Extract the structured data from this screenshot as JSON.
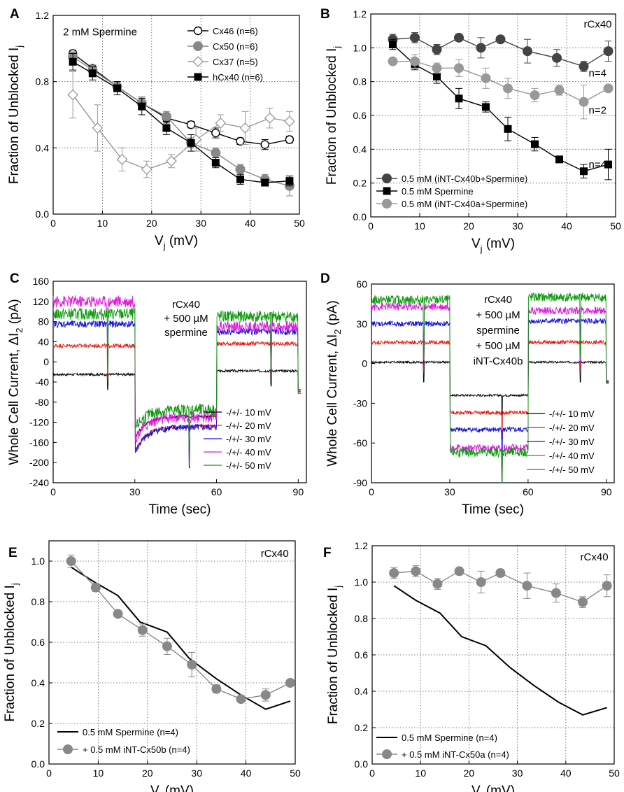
{
  "chart_data": [
    {
      "id": "A",
      "type": "line",
      "panel_label": "A",
      "xlabel": "V",
      "xlabel_sub": "j",
      "xlabel_unit": " (mV)",
      "ylabel": "Fraction of Unblocked I",
      "ylabel_sub": "j",
      "xlim": [
        0,
        50
      ],
      "ylim": [
        0,
        1.2
      ],
      "xticks": [
        0,
        10,
        20,
        30,
        40,
        50
      ],
      "yticks": [
        0.0,
        0.4,
        0.8,
        1.2
      ],
      "ytick_labels": [
        "0.0",
        "0.4",
        "0.8",
        "1.2"
      ],
      "grid_x": [
        10,
        20,
        30,
        40
      ],
      "grid_y": [
        0.4,
        0.8
      ],
      "annotations": [
        {
          "text": "2 mM Spermine",
          "x": 2,
          "y": 1.08
        }
      ],
      "legend_position": "top-right",
      "series": [
        {
          "name": "Cx46 (n=6)",
          "marker": "circle-open",
          "color": "#000000",
          "x": [
            4,
            8,
            13,
            18,
            23,
            28,
            33,
            38,
            43,
            48
          ],
          "y": [
            0.97,
            0.88,
            0.77,
            0.67,
            0.58,
            0.54,
            0.49,
            0.44,
            0.42,
            0.45
          ],
          "err": [
            0.02,
            0.02,
            0.03,
            0.03,
            0.03,
            0.02,
            0.03,
            0.02,
            0.03,
            0.02
          ]
        },
        {
          "name": "Cx50 (n=6)",
          "marker": "circle",
          "color": "#888888",
          "x": [
            4,
            8,
            13,
            18,
            23,
            28,
            33,
            38,
            43,
            48
          ],
          "y": [
            0.95,
            0.87,
            0.77,
            0.67,
            0.59,
            0.43,
            0.37,
            0.27,
            0.21,
            0.17
          ],
          "err": [
            0.03,
            0.03,
            0.03,
            0.04,
            0.03,
            0.03,
            0.03,
            0.03,
            0.03,
            0.06
          ]
        },
        {
          "name": "Cx37 (n=5)",
          "marker": "diamond-open",
          "color": "#999999",
          "x": [
            4,
            9,
            14,
            19,
            24,
            29,
            34,
            39,
            44,
            48
          ],
          "y": [
            0.72,
            0.52,
            0.33,
            0.27,
            0.32,
            0.45,
            0.55,
            0.52,
            0.58,
            0.56
          ],
          "err": [
            0.14,
            0.14,
            0.07,
            0.05,
            0.04,
            0.07,
            0.05,
            0.1,
            0.06,
            0.06
          ]
        },
        {
          "name": "hCx40 (n=6)",
          "marker": "square",
          "color": "#000000",
          "x": [
            4,
            8,
            13,
            18,
            23,
            28,
            33,
            38,
            43,
            48
          ],
          "y": [
            0.92,
            0.85,
            0.76,
            0.65,
            0.52,
            0.43,
            0.31,
            0.21,
            0.19,
            0.2
          ],
          "err": [
            0.05,
            0.04,
            0.04,
            0.05,
            0.04,
            0.05,
            0.03,
            0.03,
            0.02,
            0.03
          ]
        }
      ]
    },
    {
      "id": "B",
      "type": "line",
      "panel_label": "B",
      "xlabel": "V",
      "xlabel_sub": "j",
      "xlabel_unit": " (mV)",
      "ylabel": "Fraction of Unblocked I",
      "ylabel_sub": "j",
      "xlim": [
        0,
        50
      ],
      "ylim": [
        0,
        1.2
      ],
      "xticks": [
        0,
        10,
        20,
        30,
        40,
        50
      ],
      "yticks": [
        0.0,
        0.2,
        0.4,
        0.6,
        0.8,
        1.0,
        1.2
      ],
      "ytick_labels": [
        "0.0",
        "0.2",
        "0.4",
        "0.6",
        "0.8",
        "1.0",
        "1.2"
      ],
      "grid_x": [
        10,
        20,
        30,
        40
      ],
      "grid_y": [
        0.2,
        0.4,
        0.6,
        0.8,
        1.0
      ],
      "annotations": [
        {
          "text": "rCx40",
          "x": 43.5,
          "y": 1.12
        },
        {
          "text": "n=4",
          "x": 44.5,
          "y": 0.83
        },
        {
          "text": "n=2",
          "x": 44.5,
          "y": 0.61,
          "color": "#999999"
        },
        {
          "text": "n=4",
          "x": 44.5,
          "y": 0.29
        }
      ],
      "legend_position": "bottom-left",
      "series": [
        {
          "name": "0.5 mM (iNT-Cx40b+Spermine)",
          "marker": "circle",
          "color": "#444444",
          "x": [
            4.5,
            9,
            13.5,
            18,
            22.5,
            26.5,
            32,
            38,
            43.5,
            48.5
          ],
          "y": [
            1.05,
            1.06,
            0.99,
            1.06,
            1.0,
            1.05,
            0.98,
            0.94,
            0.89,
            0.98
          ],
          "err": [
            0.03,
            0.03,
            0.03,
            0.02,
            0.06,
            0.02,
            0.07,
            0.05,
            0.03,
            0.06
          ]
        },
        {
          "name": "0.5 mM Spermine",
          "marker": "square",
          "color": "#000000",
          "x": [
            4.5,
            9,
            13.5,
            18,
            23.5,
            28,
            33.5,
            38.5,
            43.5,
            48.5
          ],
          "y": [
            1.02,
            0.9,
            0.83,
            0.7,
            0.65,
            0.52,
            0.43,
            0.34,
            0.27,
            0.31
          ],
          "err": [
            0.03,
            0.03,
            0.04,
            0.06,
            0.03,
            0.07,
            0.04,
            0.02,
            0.04,
            0.09
          ]
        },
        {
          "name": "0.5 mM (iNT-Cx40a+Spermine)",
          "marker": "circle",
          "color": "#999999",
          "x": [
            4.5,
            9,
            13.5,
            18,
            23.5,
            28,
            33.5,
            38.5,
            43.5,
            48.5
          ],
          "y": [
            0.92,
            0.92,
            0.88,
            0.88,
            0.82,
            0.76,
            0.72,
            0.75,
            0.68,
            0.76
          ],
          "err": [
            0.0,
            0.04,
            0.03,
            0.05,
            0.06,
            0.06,
            0.04,
            0.03,
            0.1,
            0.02
          ]
        }
      ]
    },
    {
      "id": "C",
      "type": "line",
      "panel_label": "C",
      "xlabel": "Time (sec)",
      "ylabel": "Whole Cell Current, ΔI",
      "ylabel_sub": "2",
      "ylabel_unit": " (pA)",
      "xlim": [
        0,
        93
      ],
      "ylim": [
        -240,
        160
      ],
      "xticks": [
        0,
        30,
        60,
        90
      ],
      "yticks": [
        -240,
        -200,
        -160,
        -120,
        -80,
        -40,
        0,
        40,
        80,
        120,
        160
      ],
      "ytick_labels": [
        "-240",
        "-200",
        "-160",
        "-120",
        "-80",
        "-40",
        "0",
        "40",
        "80",
        "120",
        "160"
      ],
      "annotations": [
        {
          "text": "rCx40"
        },
        {
          "text": "+ 500 µM"
        },
        {
          "text": "spermine"
        }
      ],
      "legend_position": "bottom-right",
      "series": [
        {
          "name": "-/+/- 10 mV",
          "color": "#000000",
          "seg1": -25,
          "seg2": -108,
          "seg3": -18,
          "noise": 2.5,
          "transient": 30
        },
        {
          "name": "-/+/- 20 mV",
          "color": "#e8170f",
          "seg1": 32,
          "seg2": -128,
          "seg3": 36,
          "noise": 4,
          "transient": 60
        },
        {
          "name": "-/+/- 30 mV",
          "color": "#1111dd",
          "seg1": 75,
          "seg2": -130,
          "seg3": 60,
          "noise": 7,
          "transient": 80
        },
        {
          "name": "-/+/- 40 mV",
          "color": "#e019e0",
          "seg1": 120,
          "seg2": -110,
          "seg3": 70,
          "noise": 12,
          "transient": 95
        },
        {
          "name": "-/+/- 50 mV",
          "color": "#0a9a0a",
          "seg1": 95,
          "seg2": -95,
          "seg3": 90,
          "noise": 12,
          "transient": 110
        }
      ]
    },
    {
      "id": "D",
      "type": "line",
      "panel_label": "D",
      "xlabel": "Time (sec)",
      "ylabel": "Whole Cell Current, ΔI",
      "ylabel_sub": "2",
      "ylabel_unit": " (pA)",
      "xlim": [
        0,
        93
      ],
      "ylim": [
        -90,
        60
      ],
      "xticks": [
        0,
        30,
        60,
        90
      ],
      "yticks": [
        -90,
        -60,
        -30,
        0,
        30,
        60
      ],
      "ytick_labels": [
        "-90",
        "-60",
        "-30",
        "0",
        "30",
        "60"
      ],
      "annotations": [
        {
          "text": "rCx40"
        },
        {
          "text": "+ 500 µM"
        },
        {
          "text": "spermine"
        },
        {
          "text": "+ 500 µM"
        },
        {
          "text": "iNT-Cx40b"
        }
      ],
      "legend_position": "bottom-right",
      "series": [
        {
          "name": "-/+/- 10 mV",
          "color": "#000000",
          "seg1": 1,
          "seg2": -24,
          "seg3": 1,
          "noise": 0.8,
          "transient": 15
        },
        {
          "name": "-/+/- 20 mV",
          "color": "#e8170f",
          "seg1": 16,
          "seg2": -37,
          "seg3": 16,
          "noise": 1.5,
          "transient": 20
        },
        {
          "name": "-/+/- 30 mV",
          "color": "#1111dd",
          "seg1": 30,
          "seg2": -50,
          "seg3": 32,
          "noise": 2,
          "transient": 30
        },
        {
          "name": "-/+/- 40 mV",
          "color": "#e019e0",
          "seg1": 43,
          "seg2": -64,
          "seg3": 40,
          "noise": 3,
          "transient": 40
        },
        {
          "name": "-/+/- 50 mV",
          "color": "#0a9a0a",
          "seg1": 48,
          "seg2": -67,
          "seg3": 50,
          "noise": 3.5,
          "transient": 45
        }
      ]
    },
    {
      "id": "E",
      "type": "line",
      "panel_label": "E",
      "xlabel": "V",
      "xlabel_sub": "j",
      "xlabel_unit": " (mV)",
      "ylabel": "Fraction of Unblocked I",
      "ylabel_sub": "j",
      "xlim": [
        0,
        50
      ],
      "ylim": [
        0,
        1.1
      ],
      "xticks": [
        0,
        10,
        20,
        30,
        40,
        50
      ],
      "yticks": [
        0.0,
        0.2,
        0.4,
        0.6,
        0.8,
        1.0
      ],
      "ytick_labels": [
        "0.0",
        "0.2",
        "0.4",
        "0.6",
        "0.8",
        "1.0"
      ],
      "grid_x": [
        10,
        20,
        30,
        40
      ],
      "grid_y": [
        0.2,
        0.4,
        0.6,
        0.8,
        1.0
      ],
      "annotations": [
        {
          "text": "rCx40",
          "x": 43,
          "y": 1.02
        }
      ],
      "legend_position": "bottom-left",
      "series": [
        {
          "name": "0.5 mM Spermine (n=4)",
          "marker": "none",
          "color": "#000000",
          "x": [
            4.5,
            9,
            14,
            18.5,
            24,
            28.5,
            34,
            39,
            44,
            49
          ],
          "y": [
            0.97,
            0.9,
            0.83,
            0.7,
            0.65,
            0.52,
            0.42,
            0.34,
            0.27,
            0.31
          ],
          "err": []
        },
        {
          "name": "+ 0.5 mM iNT-Cx50b (n=4)",
          "marker": "circle",
          "color": "#888888",
          "x": [
            4.5,
            9.5,
            14,
            19,
            24,
            29,
            34,
            39,
            44,
            49
          ],
          "y": [
            1.0,
            0.87,
            0.74,
            0.66,
            0.58,
            0.49,
            0.37,
            0.32,
            0.34,
            0.4
          ],
          "err": [
            0.03,
            0.02,
            0.01,
            0.03,
            0.04,
            0.06,
            0.02,
            0.01,
            0.03,
            0.01
          ]
        }
      ]
    },
    {
      "id": "F",
      "type": "line",
      "panel_label": "F",
      "xlabel": "V",
      "xlabel_sub": "j",
      "xlabel_unit": " (mV)",
      "ylabel": "Fraction of Unblocked I",
      "ylabel_sub": "j",
      "xlim": [
        0,
        50
      ],
      "ylim": [
        0,
        1.2
      ],
      "xticks": [
        0,
        10,
        20,
        30,
        40,
        50
      ],
      "yticks": [
        0.0,
        0.2,
        0.4,
        0.6,
        0.8,
        1.0,
        1.2
      ],
      "ytick_labels": [
        "0.0",
        "0.2",
        "0.4",
        "0.6",
        "0.8",
        "1.0",
        "1.2"
      ],
      "grid_x": [
        10,
        20,
        30,
        40
      ],
      "grid_y": [
        0.2,
        0.4,
        0.6,
        0.8,
        1.0
      ],
      "annotations": [
        {
          "text": "rCx40",
          "x": 43,
          "y": 1.12
        }
      ],
      "legend_position": "bottom-left",
      "series": [
        {
          "name": "0.5 mM Spermine (n=4)",
          "marker": "none",
          "color": "#000000",
          "x": [
            4.5,
            9,
            14,
            18.5,
            23.5,
            28.5,
            33.5,
            38.5,
            43.5,
            48.5
          ],
          "y": [
            0.98,
            0.9,
            0.83,
            0.7,
            0.65,
            0.53,
            0.43,
            0.34,
            0.27,
            0.31
          ],
          "err": []
        },
        {
          "name": "+ 0.5 mM iNT-Cx50a (n=4)",
          "marker": "circle",
          "color": "#888888",
          "x": [
            4.5,
            9,
            13.5,
            18,
            22.5,
            26.5,
            32,
            38,
            43.5,
            48.5
          ],
          "y": [
            1.05,
            1.06,
            0.99,
            1.06,
            1.0,
            1.05,
            0.98,
            0.94,
            0.89,
            0.98
          ],
          "err": [
            0.03,
            0.03,
            0.03,
            0.02,
            0.06,
            0.02,
            0.07,
            0.05,
            0.03,
            0.06
          ]
        }
      ]
    }
  ]
}
